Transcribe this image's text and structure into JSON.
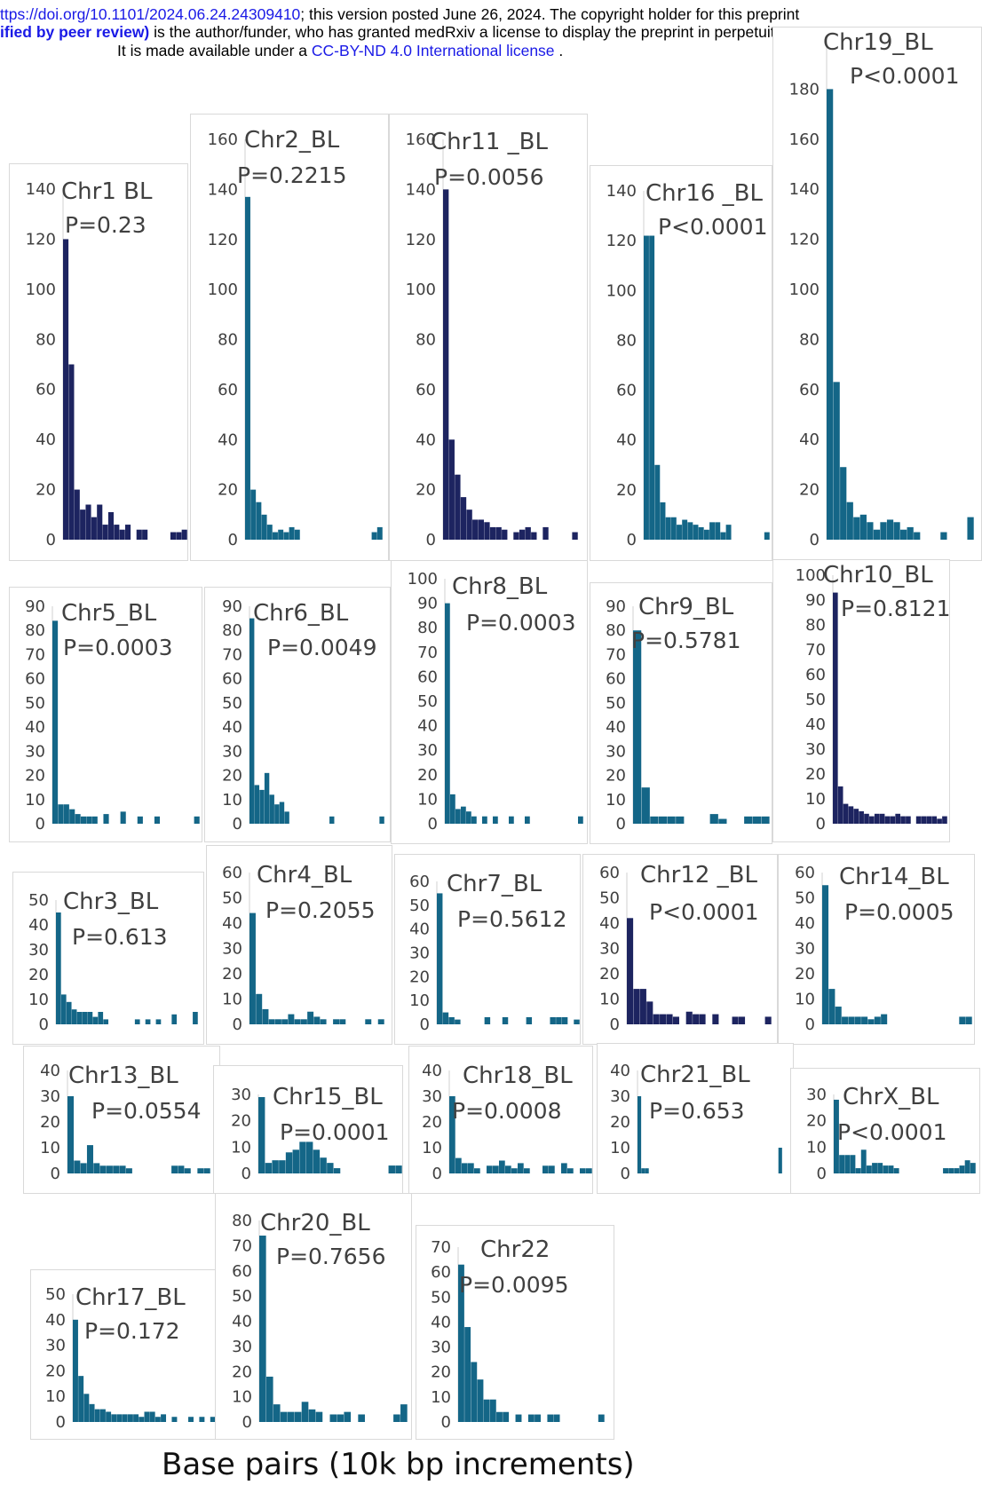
{
  "header": {
    "line1_link": "ttps://doi.org/10.1101/2024.06.24.24309410",
    "line1_text": "; this version posted June 26, 2024. The copyright holder for this preprint",
    "line2_bold": "ified by peer review)",
    "line2_text": " is the author/funder, who has granted medRxiv a license to display the preprint in perpetuity.",
    "line3_text": "It is made available under a ",
    "line3_link": "CC-BY-ND 4.0 International license",
    "line3_end": " ."
  },
  "colors": {
    "teal": "#146687",
    "navy": "#1d2460",
    "text": "#404040"
  },
  "xlabel": "Base pairs (10k bp increments)",
  "chart_data": [
    {
      "type": "bar",
      "title": "Chr1 BL",
      "pvalue": "P=0.23",
      "color": "navy",
      "yticks": [
        0,
        20,
        40,
        60,
        80,
        100,
        120,
        140
      ],
      "ymax": 140,
      "values": [
        120,
        70,
        20,
        12,
        14,
        9,
        14,
        6,
        11,
        6,
        4,
        6,
        0,
        4,
        4,
        0,
        0,
        0,
        0,
        3,
        3,
        4
      ]
    },
    {
      "type": "bar",
      "title": "Chr2_BL",
      "pvalue": "P=0.2215",
      "color": "teal",
      "yticks": [
        0,
        20,
        40,
        60,
        80,
        100,
        120,
        140,
        160
      ],
      "ymax": 160,
      "values": [
        137,
        20,
        15,
        10,
        6,
        3,
        4,
        3,
        5,
        4,
        0,
        0,
        0,
        0,
        0,
        0,
        0,
        0,
        0,
        0,
        0,
        0,
        0,
        3,
        5
      ]
    },
    {
      "type": "bar",
      "title": "Chr11 _BL",
      "pvalue": "P=0.0056",
      "color": "navy",
      "yticks": [
        0,
        20,
        40,
        60,
        80,
        100,
        120,
        140,
        160
      ],
      "ymax": 160,
      "values": [
        140,
        40,
        26,
        17,
        12,
        8,
        8,
        7,
        5,
        5,
        4,
        0,
        3,
        4,
        5,
        3,
        0,
        5,
        0,
        0,
        0,
        0,
        3
      ]
    },
    {
      "type": "bar",
      "title": "Chr16 _BL",
      "pvalue": "P<0.0001",
      "color": "teal",
      "yticks": [
        0,
        20,
        40,
        60,
        80,
        100,
        120,
        140
      ],
      "ymax": 140,
      "values": [
        122,
        122,
        30,
        15,
        9,
        9,
        6,
        8,
        7,
        6,
        5,
        4,
        7,
        7,
        3,
        6,
        0,
        0,
        0,
        0,
        0,
        0,
        3
      ]
    },
    {
      "type": "bar",
      "title": "Chr19_BL",
      "pvalue": "P<0.0001",
      "color": "teal",
      "yticks": [
        0,
        20,
        40,
        60,
        80,
        100,
        120,
        140,
        160,
        180
      ],
      "ymax": 200,
      "values": [
        180,
        63,
        29,
        15,
        9,
        10,
        7,
        4,
        7,
        8,
        7,
        4,
        5,
        3,
        0,
        0,
        0,
        3,
        0,
        0,
        0,
        9
      ]
    },
    {
      "type": "bar",
      "title": "Chr5_BL",
      "pvalue": "P=0.0003",
      "color": "teal",
      "yticks": [
        0,
        10,
        20,
        30,
        40,
        50,
        60,
        70,
        80,
        90
      ],
      "ymax": 90,
      "values": [
        84,
        8,
        8,
        6,
        4,
        3,
        3,
        3,
        0,
        4,
        0,
        0,
        5,
        0,
        0,
        3,
        0,
        0,
        3,
        0,
        0,
        0,
        0,
        0,
        0,
        3
      ]
    },
    {
      "type": "bar",
      "title": "Chr6_BL",
      "pvalue": "P=0.0049",
      "color": "teal",
      "yticks": [
        0,
        10,
        20,
        30,
        40,
        50,
        60,
        70,
        80,
        90
      ],
      "ymax": 90,
      "values": [
        85,
        16,
        14,
        21,
        12,
        8,
        9,
        5,
        0,
        0,
        0,
        0,
        0,
        0,
        0,
        0,
        3,
        0,
        0,
        0,
        0,
        0,
        0,
        0,
        0,
        0,
        3
      ]
    },
    {
      "type": "bar",
      "title": "Chr8_BL",
      "pvalue": "P=0.0003",
      "color": "teal",
      "yticks": [
        0,
        10,
        20,
        30,
        40,
        50,
        60,
        70,
        80,
        90,
        100
      ],
      "ymax": 100,
      "values": [
        90,
        12,
        6,
        7,
        5,
        3,
        0,
        3,
        0,
        3,
        0,
        0,
        3,
        0,
        0,
        3,
        0,
        0,
        0,
        0,
        0,
        0,
        0,
        0,
        0,
        3
      ]
    },
    {
      "type": "bar",
      "title": "Chr9_BL",
      "pvalue": "P=0.5781",
      "color": "teal",
      "yticks": [
        0,
        10,
        20,
        30,
        40,
        50,
        60,
        70,
        80,
        90
      ],
      "ymax": 90,
      "values": [
        80,
        15,
        3,
        3,
        3,
        3,
        0,
        0,
        0,
        4,
        2,
        0,
        0,
        3,
        3,
        3
      ]
    },
    {
      "type": "bar",
      "title": "Chr10_BL",
      "pvalue": "P=0.8121",
      "color": "navy",
      "yticks": [
        0,
        10,
        20,
        30,
        40,
        50,
        60,
        70,
        80,
        90,
        100
      ],
      "ymax": 100,
      "values": [
        93,
        15,
        8,
        7,
        6,
        5,
        4,
        3,
        4,
        4,
        3,
        3,
        4,
        3,
        3,
        0,
        3,
        3,
        3,
        3,
        2,
        3
      ]
    },
    {
      "type": "bar",
      "title": "Chr3_BL",
      "pvalue": "P=0.613",
      "color": "teal",
      "yticks": [
        0,
        10,
        20,
        30,
        40,
        50
      ],
      "ymax": 50,
      "values": [
        45,
        12,
        9,
        6,
        5,
        5,
        5,
        3,
        5,
        2,
        0,
        0,
        0,
        0,
        0,
        2,
        0,
        2,
        0,
        2,
        0,
        0,
        4,
        0,
        0,
        0,
        5
      ]
    },
    {
      "type": "bar",
      "title": "Chr4_BL",
      "pvalue": "P=0.2055",
      "color": "teal",
      "yticks": [
        0,
        10,
        20,
        30,
        40,
        50,
        60
      ],
      "ymax": 60,
      "values": [
        44,
        12,
        6,
        2,
        2,
        2,
        4,
        2,
        2,
        5,
        3,
        2,
        0,
        2,
        2,
        0,
        0,
        0,
        2,
        0,
        2
      ]
    },
    {
      "type": "bar",
      "title": "Chr7_BL",
      "pvalue": "P=0.5612",
      "color": "teal",
      "yticks": [
        0,
        10,
        20,
        30,
        40,
        50,
        60
      ],
      "ymax": 60,
      "values": [
        55,
        5,
        3,
        2,
        0,
        0,
        0,
        0,
        3,
        0,
        0,
        3,
        0,
        0,
        0,
        3,
        0,
        0,
        0,
        3,
        3,
        3,
        0,
        2
      ]
    },
    {
      "type": "bar",
      "title": "Chr12 _BL",
      "pvalue": "P<0.0001",
      "color": "navy",
      "yticks": [
        0,
        10,
        20,
        30,
        40,
        50,
        60
      ],
      "ymax": 60,
      "values": [
        42,
        14,
        14,
        9,
        4,
        4,
        4,
        3,
        0,
        5,
        4,
        4,
        0,
        4,
        0,
        0,
        3,
        3,
        0,
        0,
        0,
        3
      ]
    },
    {
      "type": "bar",
      "title": "Chr14_BL",
      "pvalue": "P=0.0005",
      "color": "teal",
      "yticks": [
        0,
        10,
        20,
        30,
        40,
        50,
        60
      ],
      "ymax": 60,
      "values": [
        55,
        14,
        7,
        3,
        3,
        3,
        3,
        2,
        3,
        4,
        0,
        0,
        0,
        0,
        0,
        0,
        0,
        0,
        0,
        0,
        0,
        3,
        3
      ]
    },
    {
      "type": "bar",
      "title": "Chr13_BL",
      "pvalue": "P=0.0554",
      "color": "teal",
      "yticks": [
        0,
        10,
        20,
        30,
        40
      ],
      "ymax": 40,
      "values": [
        30,
        5,
        4,
        11,
        4,
        3,
        3,
        3,
        3,
        2,
        0,
        0,
        0,
        0,
        0,
        0,
        3,
        3,
        2,
        0,
        2,
        2
      ]
    },
    {
      "type": "bar",
      "title": "Chr15_BL",
      "pvalue": "P=0.0001",
      "color": "teal",
      "yticks": [
        0,
        10,
        20,
        30
      ],
      "ymax": 30,
      "values": [
        29,
        4,
        5,
        5,
        8,
        9,
        12,
        12,
        9,
        6,
        4,
        2,
        0,
        0,
        0,
        0,
        0,
        0,
        0,
        3,
        3
      ]
    },
    {
      "type": "bar",
      "title": "Chr18_BL",
      "pvalue": "P=0.0008",
      "color": "teal",
      "yticks": [
        0,
        10,
        20,
        30,
        40
      ],
      "ymax": 40,
      "values": [
        30,
        6,
        4,
        4,
        2,
        0,
        3,
        3,
        5,
        3,
        2,
        4,
        2,
        0,
        0,
        3,
        3,
        0,
        4,
        2,
        0,
        2,
        2
      ]
    },
    {
      "type": "bar",
      "title": "Chr21_BL",
      "pvalue": "P=0.653",
      "color": "teal",
      "yticks": [
        0,
        10,
        20,
        30,
        40
      ],
      "ymax": 40,
      "values": [
        30,
        2,
        2,
        0,
        0,
        0,
        0,
        0,
        0,
        0,
        0,
        0,
        0,
        0,
        0,
        0,
        0,
        0,
        0,
        0,
        0,
        0,
        0,
        0,
        0,
        0,
        0,
        0,
        0,
        0,
        0,
        0,
        0,
        0,
        0,
        0,
        0,
        10
      ]
    },
    {
      "type": "bar",
      "title": "ChrX_BL",
      "pvalue": "P<0.0001",
      "color": "teal",
      "yticks": [
        0,
        10,
        20,
        30
      ],
      "ymax": 30,
      "values": [
        28,
        7,
        7,
        7,
        2,
        9,
        3,
        4,
        4,
        3,
        3,
        2,
        0,
        0,
        0,
        0,
        0,
        0,
        0,
        0,
        2,
        2,
        2,
        3,
        5,
        4
      ]
    },
    {
      "type": "bar",
      "title": "Chr17_BL",
      "pvalue": "P=0.172",
      "color": "teal",
      "yticks": [
        0,
        10,
        20,
        30,
        40,
        50
      ],
      "ymax": 50,
      "values": [
        40,
        18,
        11,
        7,
        5,
        5,
        4,
        3,
        3,
        3,
        3,
        3,
        2,
        4,
        4,
        2,
        3,
        0,
        2,
        0,
        0,
        2,
        0,
        2,
        0,
        2
      ]
    },
    {
      "type": "bar",
      "title": "Chr20_BL",
      "pvalue": "P=0.7656",
      "color": "teal",
      "yticks": [
        0,
        10,
        20,
        30,
        40,
        50,
        60,
        70,
        80
      ],
      "ymax": 80,
      "values": [
        74,
        18,
        7,
        4,
        4,
        4,
        8,
        5,
        4,
        0,
        3,
        3,
        4,
        0,
        3,
        0,
        0,
        0,
        0,
        3,
        7
      ]
    },
    {
      "type": "bar",
      "title": "Chr22",
      "pvalue": "P=0.0095",
      "color": "teal",
      "yticks": [
        0,
        10,
        20,
        30,
        40,
        50,
        60,
        70
      ],
      "ymax": 70,
      "values": [
        63,
        38,
        24,
        17,
        9,
        9,
        4,
        4,
        0,
        3,
        0,
        3,
        3,
        0,
        3,
        3,
        0,
        0,
        0,
        0,
        0,
        0,
        3
      ]
    }
  ]
}
